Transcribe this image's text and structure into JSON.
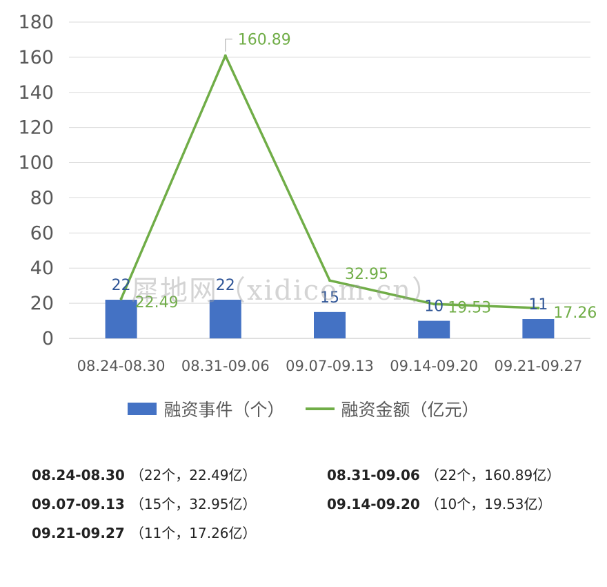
{
  "chart_data": {
    "type": "bar+line",
    "categories": [
      "08.24-08.30",
      "08.31-09.06",
      "09.07-09.13",
      "09.14-09.20",
      "09.21-09.27"
    ],
    "series": [
      {
        "name": "融资事件（个）",
        "kind": "bar",
        "color": "#4472C4",
        "values": [
          22,
          22,
          15,
          10,
          11
        ]
      },
      {
        "name": "融资金额（亿元）",
        "kind": "line",
        "color": "#70AD47",
        "values": [
          22.49,
          160.89,
          32.95,
          19.53,
          17.26
        ]
      }
    ],
    "ylim": [
      0,
      180
    ],
    "yticks": [
      "0",
      "20",
      "40",
      "60",
      "80",
      "100",
      "120",
      "140",
      "160",
      "180"
    ],
    "grid": true,
    "legend_position": "bottom"
  },
  "watermark": "犀地网（xidicom.cn）",
  "summary": [
    {
      "period": "08.24-08.30",
      "detail": "（22个，22.49亿）"
    },
    {
      "period": "08.31-09.06",
      "detail": "（22个，160.89亿）"
    },
    {
      "period": "09.07-09.13",
      "detail": "（15个，32.95亿）"
    },
    {
      "period": "09.14-09.20",
      "detail": "（10个，19.53亿）"
    },
    {
      "period": "09.21-09.27",
      "detail": "（11个，17.26亿）"
    }
  ]
}
